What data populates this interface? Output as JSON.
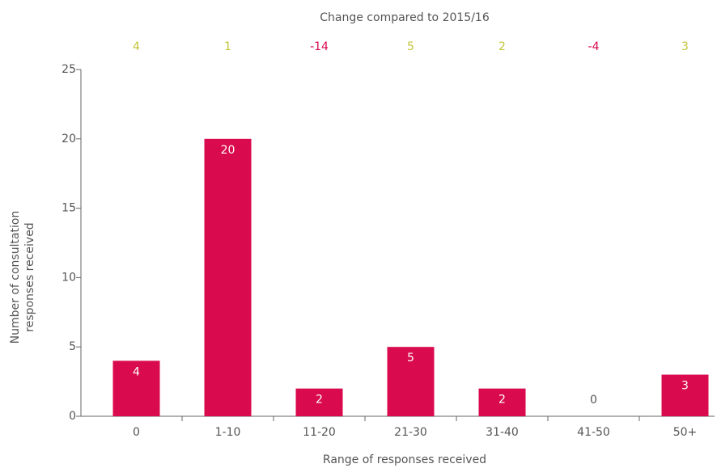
{
  "chart_data": {
    "type": "bar",
    "title": "Change compared to 2015/16",
    "categories": [
      "0",
      "1-10",
      "11-20",
      "21-30",
      "31-40",
      "41-50",
      "50+"
    ],
    "values": [
      4,
      20,
      2,
      5,
      2,
      0,
      3
    ],
    "changes": [
      4,
      1,
      -14,
      5,
      2,
      -4,
      3
    ],
    "color": "#d90b4e",
    "positive_color": "#c3c43a",
    "negative_color": "#d90b4e",
    "x_label": "Range of responses received",
    "y_label": [
      "Number of consultation",
      "responses received"
    ],
    "ylim": [
      0,
      25
    ],
    "yticks": [
      0,
      5,
      10,
      15,
      20,
      25
    ],
    "grid": false
  }
}
